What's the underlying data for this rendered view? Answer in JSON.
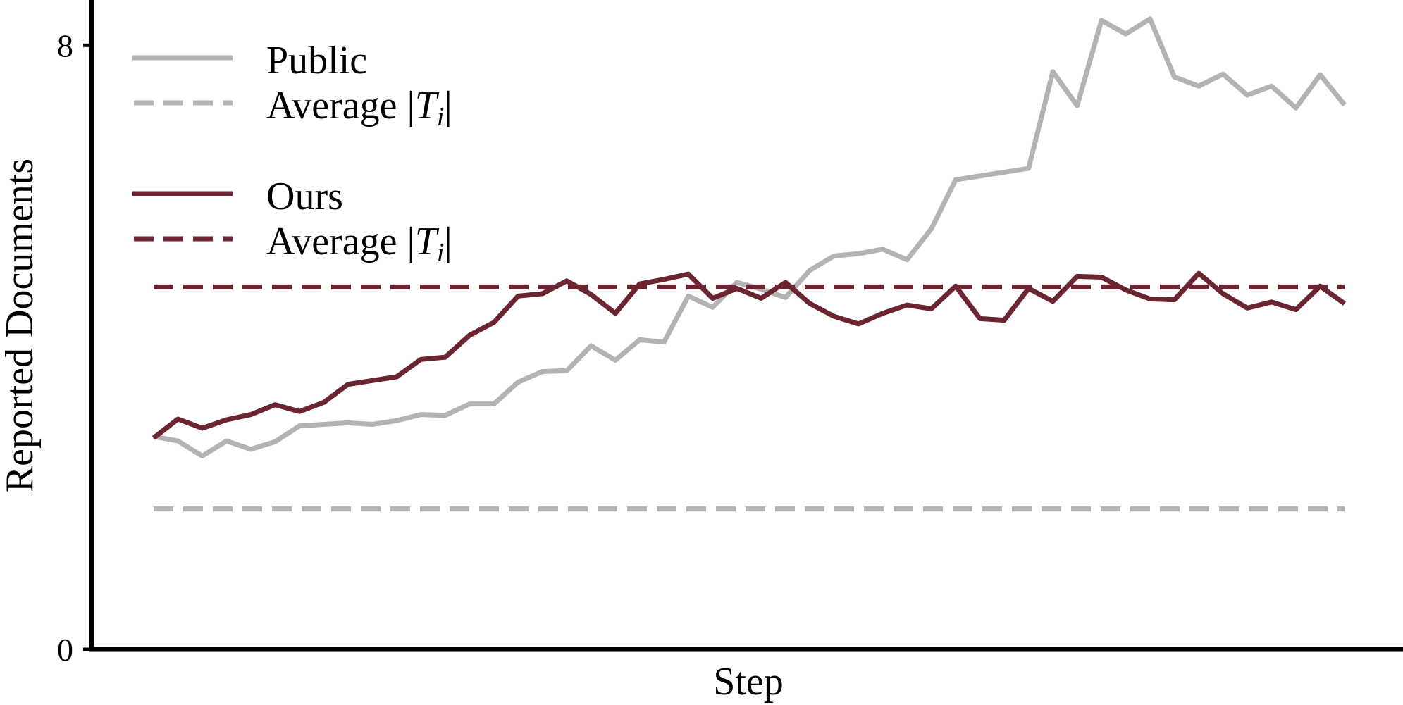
{
  "chart_data": {
    "type": "line",
    "title": "",
    "xlabel": "Step",
    "ylabel": "Reported Documents",
    "ylim": [
      0,
      8.6
    ],
    "y_ticks": [
      {
        "value": 0,
        "label": "0"
      },
      {
        "value": 8,
        "label": "8"
      }
    ],
    "x_tick_labels": false,
    "grid": false,
    "legend_position": "top-left",
    "legend": [
      {
        "label": "Public",
        "style": "solid",
        "color": "#b3b3b3"
      },
      {
        "label": "Average |Ti|",
        "text_main": "Average |",
        "text_var": "T",
        "text_sub": "i",
        "text_tail": "|",
        "style": "dashed",
        "color": "#b3b3b3"
      },
      {
        "label": "Ours",
        "style": "solid",
        "color": "#6b2530"
      },
      {
        "label": "Average |Ti|",
        "text_main": "Average |",
        "text_var": "T",
        "text_sub": "i",
        "text_tail": "|",
        "style": "dashed",
        "color": "#6b2530"
      }
    ],
    "x": [
      0,
      1,
      2,
      3,
      4,
      5,
      6,
      7,
      8,
      9,
      10,
      11,
      12,
      13,
      14,
      15,
      16,
      17,
      18,
      19,
      20,
      21,
      22,
      23,
      24,
      25,
      26,
      27,
      28,
      29,
      30,
      31,
      32,
      33,
      34,
      35,
      36,
      37,
      38,
      39,
      40,
      41,
      42,
      43,
      44,
      45,
      46,
      47,
      48,
      49
    ],
    "series": [
      {
        "name": "Public",
        "style": "solid",
        "color": "#b3b3b3",
        "values": [
          2.82,
          2.76,
          2.56,
          2.76,
          2.65,
          2.75,
          2.96,
          2.98,
          3.0,
          2.98,
          3.03,
          3.11,
          3.1,
          3.25,
          3.25,
          3.54,
          3.68,
          3.69,
          4.02,
          3.83,
          4.1,
          4.07,
          4.68,
          4.53,
          4.86,
          4.77,
          4.66,
          5.02,
          5.21,
          5.24,
          5.3,
          5.16,
          5.57,
          6.22,
          6.27,
          6.32,
          6.37,
          7.65,
          7.2,
          8.33,
          8.15,
          8.35,
          7.58,
          7.46,
          7.62,
          7.34,
          7.46,
          7.17,
          7.61,
          7.21
        ]
      },
      {
        "name": "Average |Ti|",
        "style": "dashed",
        "color": "#b3b3b3",
        "values": [
          1.86,
          1.86,
          1.86,
          1.86,
          1.86,
          1.86,
          1.86,
          1.86,
          1.86,
          1.86,
          1.86,
          1.86,
          1.86,
          1.86,
          1.86,
          1.86,
          1.86,
          1.86,
          1.86,
          1.86,
          1.86,
          1.86,
          1.86,
          1.86,
          1.86,
          1.86,
          1.86,
          1.86,
          1.86,
          1.86,
          1.86,
          1.86,
          1.86,
          1.86,
          1.86,
          1.86,
          1.86,
          1.86,
          1.86,
          1.86,
          1.86,
          1.86,
          1.86,
          1.86,
          1.86,
          1.86,
          1.86,
          1.86,
          1.86,
          1.86
        ]
      },
      {
        "name": "Ours",
        "style": "solid",
        "color": "#6b2530",
        "values": [
          2.8,
          3.05,
          2.93,
          3.04,
          3.11,
          3.24,
          3.15,
          3.27,
          3.51,
          3.56,
          3.61,
          3.84,
          3.87,
          4.16,
          4.33,
          4.68,
          4.71,
          4.88,
          4.7,
          4.45,
          4.84,
          4.9,
          4.97,
          4.65,
          4.78,
          4.65,
          4.86,
          4.58,
          4.41,
          4.31,
          4.45,
          4.56,
          4.51,
          4.81,
          4.38,
          4.36,
          4.78,
          4.61,
          4.94,
          4.93,
          4.76,
          4.64,
          4.63,
          4.98,
          4.71,
          4.52,
          4.6,
          4.5,
          4.81,
          4.58
        ]
      },
      {
        "name": "Average |Ti|",
        "style": "dashed",
        "color": "#6b2530",
        "values": [
          4.8,
          4.8,
          4.8,
          4.8,
          4.8,
          4.8,
          4.8,
          4.8,
          4.8,
          4.8,
          4.8,
          4.8,
          4.8,
          4.8,
          4.8,
          4.8,
          4.8,
          4.8,
          4.8,
          4.8,
          4.8,
          4.8,
          4.8,
          4.8,
          4.8,
          4.8,
          4.8,
          4.8,
          4.8,
          4.8,
          4.8,
          4.8,
          4.8,
          4.8,
          4.8,
          4.8,
          4.8,
          4.8,
          4.8,
          4.8,
          4.8,
          4.8,
          4.8,
          4.8,
          4.8,
          4.8,
          4.8,
          4.8,
          4.8,
          4.8
        ]
      }
    ]
  }
}
